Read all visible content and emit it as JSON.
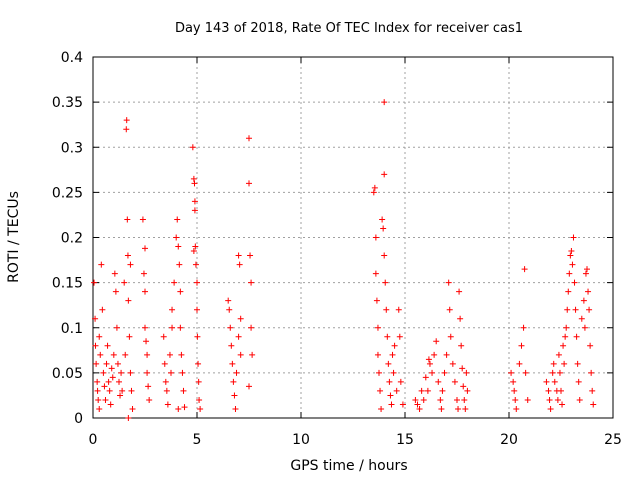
{
  "chart_data": {
    "type": "scatter",
    "title": "Day 143 of 2018, Rate Of TEC Index for receiver cas1",
    "xlabel": "GPS time / hours",
    "ylabel": "ROTI / TECUs",
    "xlim": [
      0,
      25
    ],
    "ylim": [
      0,
      0.4
    ],
    "xticks": [
      0,
      5,
      10,
      15,
      20,
      25
    ],
    "xtick_labels": [
      "0",
      "5",
      "10",
      "15",
      "20",
      "25"
    ],
    "yticks": [
      0,
      0.05,
      0.1,
      0.15,
      0.2,
      0.25,
      0.3,
      0.35,
      0.4
    ],
    "ytick_labels": [
      "0",
      "0.05",
      "0.1",
      "0.15",
      "0.2",
      "0.25",
      "0.3",
      "0.35",
      "0.4"
    ],
    "grid": true,
    "marker": "plus",
    "marker_color": "#ff0000",
    "series": [
      {
        "name": "ROTI",
        "points": [
          [
            0.05,
            0.15
          ],
          [
            0.1,
            0.11
          ],
          [
            0.12,
            0.08
          ],
          [
            0.15,
            0.06
          ],
          [
            0.2,
            0.04
          ],
          [
            0.22,
            0.03
          ],
          [
            0.25,
            0.02
          ],
          [
            0.3,
            0.01
          ],
          [
            0.3,
            0.09
          ],
          [
            0.35,
            0.07
          ],
          [
            0.4,
            0.17
          ],
          [
            0.45,
            0.12
          ],
          [
            0.5,
            0.05
          ],
          [
            0.55,
            0.035
          ],
          [
            0.6,
            0.02
          ],
          [
            0.65,
            0.06
          ],
          [
            0.7,
            0.08
          ],
          [
            0.75,
            0.04
          ],
          [
            0.8,
            0.03
          ],
          [
            0.85,
            0.015
          ],
          [
            0.9,
            0.055
          ],
          [
            0.95,
            0.045
          ],
          [
            1.0,
            0.07
          ],
          [
            1.05,
            0.16
          ],
          [
            1.1,
            0.14
          ],
          [
            1.15,
            0.1
          ],
          [
            1.2,
            0.06
          ],
          [
            1.25,
            0.04
          ],
          [
            1.3,
            0.025
          ],
          [
            1.35,
            0.05
          ],
          [
            1.4,
            0.03
          ],
          [
            1.5,
            0.15
          ],
          [
            1.55,
            0.07
          ],
          [
            1.6,
            0.32
          ],
          [
            1.62,
            0.33
          ],
          [
            1.65,
            0.22
          ],
          [
            1.68,
            0.18
          ],
          [
            1.7,
            0.13
          ],
          [
            1.75,
            0.09
          ],
          [
            1.8,
            0.05
          ],
          [
            1.85,
            0.03
          ],
          [
            1.9,
            0.01
          ],
          [
            1.7,
            0.0
          ],
          [
            1.8,
            0.17
          ],
          [
            2.4,
            0.22
          ],
          [
            2.45,
            0.16
          ],
          [
            2.5,
            0.14
          ],
          [
            2.5,
            0.1
          ],
          [
            2.55,
            0.085
          ],
          [
            2.6,
            0.07
          ],
          [
            2.6,
            0.05
          ],
          [
            2.65,
            0.035
          ],
          [
            2.7,
            0.02
          ],
          [
            2.5,
            0.188
          ],
          [
            3.4,
            0.09
          ],
          [
            3.45,
            0.06
          ],
          [
            3.5,
            0.04
          ],
          [
            3.55,
            0.03
          ],
          [
            3.6,
            0.015
          ],
          [
            3.7,
            0.07
          ],
          [
            3.75,
            0.05
          ],
          [
            3.8,
            0.1
          ],
          [
            3.8,
            0.12
          ],
          [
            3.9,
            0.15
          ],
          [
            4.0,
            0.2
          ],
          [
            4.05,
            0.22
          ],
          [
            4.1,
            0.19
          ],
          [
            4.15,
            0.17
          ],
          [
            4.2,
            0.14
          ],
          [
            4.2,
            0.1
          ],
          [
            4.25,
            0.07
          ],
          [
            4.3,
            0.05
          ],
          [
            4.35,
            0.03
          ],
          [
            4.4,
            0.012
          ],
          [
            4.1,
            0.01
          ],
          [
            4.8,
            0.3
          ],
          [
            4.85,
            0.265
          ],
          [
            4.88,
            0.26
          ],
          [
            4.9,
            0.24
          ],
          [
            4.9,
            0.23
          ],
          [
            4.92,
            0.19
          ],
          [
            4.95,
            0.17
          ],
          [
            5.0,
            0.15
          ],
          [
            5.0,
            0.12
          ],
          [
            5.02,
            0.09
          ],
          [
            5.05,
            0.06
          ],
          [
            5.08,
            0.04
          ],
          [
            5.1,
            0.02
          ],
          [
            5.15,
            0.01
          ],
          [
            4.85,
            0.185
          ],
          [
            6.5,
            0.13
          ],
          [
            6.55,
            0.12
          ],
          [
            6.6,
            0.1
          ],
          [
            6.65,
            0.08
          ],
          [
            6.7,
            0.06
          ],
          [
            6.75,
            0.04
          ],
          [
            6.8,
            0.025
          ],
          [
            6.85,
            0.01
          ],
          [
            6.9,
            0.05
          ],
          [
            7.0,
            0.09
          ],
          [
            7.0,
            0.18
          ],
          [
            7.05,
            0.17
          ],
          [
            7.1,
            0.11
          ],
          [
            7.1,
            0.07
          ],
          [
            7.5,
            0.31
          ],
          [
            7.5,
            0.26
          ],
          [
            7.55,
            0.18
          ],
          [
            7.6,
            0.15
          ],
          [
            7.6,
            0.1
          ],
          [
            7.65,
            0.07
          ],
          [
            7.5,
            0.035
          ],
          [
            13.5,
            0.25
          ],
          [
            13.55,
            0.255
          ],
          [
            13.6,
            0.2
          ],
          [
            13.6,
            0.16
          ],
          [
            13.65,
            0.13
          ],
          [
            13.7,
            0.1
          ],
          [
            13.7,
            0.07
          ],
          [
            13.75,
            0.05
          ],
          [
            13.8,
            0.03
          ],
          [
            13.85,
            0.01
          ],
          [
            13.9,
            0.22
          ],
          [
            13.95,
            0.21
          ],
          [
            14.0,
            0.18
          ],
          [
            14.05,
            0.15
          ],
          [
            14.0,
            0.35
          ],
          [
            14.0,
            0.27
          ],
          [
            14.1,
            0.12
          ],
          [
            14.15,
            0.09
          ],
          [
            14.2,
            0.06
          ],
          [
            14.25,
            0.04
          ],
          [
            14.3,
            0.025
          ],
          [
            14.35,
            0.015
          ],
          [
            14.4,
            0.07
          ],
          [
            14.45,
            0.05
          ],
          [
            14.5,
            0.08
          ],
          [
            14.6,
            0.03
          ],
          [
            14.7,
            0.12
          ],
          [
            14.75,
            0.09
          ],
          [
            14.8,
            0.04
          ],
          [
            14.9,
            0.015
          ],
          [
            15.5,
            0.02
          ],
          [
            15.6,
            0.015
          ],
          [
            15.7,
            0.01
          ],
          [
            15.8,
            0.03
          ],
          [
            15.9,
            0.02
          ],
          [
            16.0,
            0.045
          ],
          [
            16.1,
            0.03
          ],
          [
            16.15,
            0.065
          ],
          [
            16.2,
            0.06
          ],
          [
            16.3,
            0.05
          ],
          [
            16.4,
            0.07
          ],
          [
            16.5,
            0.085
          ],
          [
            16.6,
            0.04
          ],
          [
            16.7,
            0.02
          ],
          [
            16.75,
            0.01
          ],
          [
            16.8,
            0.03
          ],
          [
            16.9,
            0.05
          ],
          [
            17.0,
            0.07
          ],
          [
            17.1,
            0.15
          ],
          [
            17.15,
            0.12
          ],
          [
            17.2,
            0.09
          ],
          [
            17.3,
            0.06
          ],
          [
            17.4,
            0.04
          ],
          [
            17.5,
            0.02
          ],
          [
            17.55,
            0.01
          ],
          [
            17.6,
            0.14
          ],
          [
            17.65,
            0.11
          ],
          [
            17.7,
            0.08
          ],
          [
            17.75,
            0.055
          ],
          [
            17.8,
            0.035
          ],
          [
            17.85,
            0.02
          ],
          [
            17.9,
            0.01
          ],
          [
            17.95,
            0.05
          ],
          [
            18.0,
            0.03
          ],
          [
            20.1,
            0.05
          ],
          [
            20.2,
            0.04
          ],
          [
            20.25,
            0.03
          ],
          [
            20.3,
            0.02
          ],
          [
            20.35,
            0.01
          ],
          [
            20.5,
            0.06
          ],
          [
            20.6,
            0.08
          ],
          [
            20.7,
            0.1
          ],
          [
            20.75,
            0.165
          ],
          [
            20.8,
            0.05
          ],
          [
            20.9,
            0.02
          ],
          [
            21.8,
            0.04
          ],
          [
            21.9,
            0.03
          ],
          [
            21.95,
            0.02
          ],
          [
            22.0,
            0.01
          ],
          [
            22.1,
            0.05
          ],
          [
            22.15,
            0.06
          ],
          [
            22.2,
            0.04
          ],
          [
            22.3,
            0.03
          ],
          [
            22.35,
            0.02
          ],
          [
            22.4,
            0.07
          ],
          [
            22.45,
            0.05
          ],
          [
            22.5,
            0.03
          ],
          [
            22.55,
            0.015
          ],
          [
            22.6,
            0.08
          ],
          [
            22.65,
            0.06
          ],
          [
            22.7,
            0.09
          ],
          [
            22.75,
            0.1
          ],
          [
            22.8,
            0.12
          ],
          [
            22.85,
            0.14
          ],
          [
            22.9,
            0.16
          ],
          [
            22.95,
            0.18
          ],
          [
            23.0,
            0.185
          ],
          [
            23.05,
            0.17
          ],
          [
            23.1,
            0.2
          ],
          [
            23.15,
            0.15
          ],
          [
            23.2,
            0.12
          ],
          [
            23.25,
            0.09
          ],
          [
            23.3,
            0.06
          ],
          [
            23.35,
            0.04
          ],
          [
            23.4,
            0.02
          ],
          [
            23.5,
            0.11
          ],
          [
            23.6,
            0.13
          ],
          [
            23.65,
            0.1
          ],
          [
            23.7,
            0.16
          ],
          [
            23.75,
            0.165
          ],
          [
            23.8,
            0.14
          ],
          [
            23.85,
            0.12
          ],
          [
            23.9,
            0.08
          ],
          [
            23.95,
            0.05
          ],
          [
            24.0,
            0.03
          ],
          [
            24.05,
            0.015
          ]
        ]
      }
    ]
  }
}
